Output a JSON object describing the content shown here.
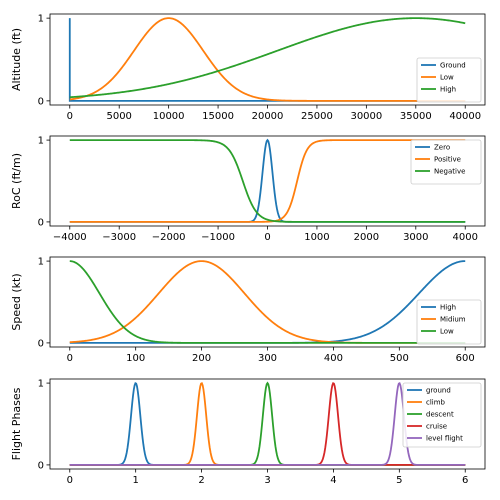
{
  "chart_data": [
    {
      "type": "line",
      "ylabel": "Altitude (ft)",
      "xlim": [
        -2000,
        42000
      ],
      "ylim": [
        -0.05,
        1.05
      ],
      "xticks": [
        0,
        5000,
        10000,
        15000,
        20000,
        25000,
        30000,
        35000,
        40000
      ],
      "yticks": [
        0,
        1
      ],
      "legend": "right",
      "series": [
        {
          "name": "Ground",
          "color": "#1f77b4",
          "kind": "spike",
          "at": 0,
          "x_range": [
            0,
            40000
          ]
        },
        {
          "name": "Low",
          "color": "#ff7f0e",
          "kind": "gauss",
          "mean": 10000,
          "sigma": 3500,
          "x_range": [
            0,
            40000
          ]
        },
        {
          "name": "High",
          "color": "#2ca02c",
          "kind": "gauss",
          "mean": 35000,
          "sigma": 14000,
          "x_range": [
            0,
            40000
          ]
        }
      ]
    },
    {
      "type": "line",
      "ylabel": "RoC (ft/m)",
      "xlim": [
        -4400,
        4400
      ],
      "ylim": [
        -0.05,
        1.05
      ],
      "xticks": [
        -4000,
        -3000,
        -2000,
        -1000,
        0,
        1000,
        2000,
        3000,
        4000
      ],
      "yticks": [
        0,
        1
      ],
      "legend": "top-right",
      "series": [
        {
          "name": "Zero",
          "color": "#1f77b4",
          "kind": "gauss",
          "mean": 0,
          "sigma": 100,
          "x_range": [
            -4000,
            4000
          ]
        },
        {
          "name": "Positive",
          "color": "#ff7f0e",
          "kind": "sigmoid",
          "center": 600,
          "width": 100,
          "x_range": [
            -4000,
            4000
          ]
        },
        {
          "name": "Negative",
          "color": "#2ca02c",
          "kind": "zsig",
          "center": -500,
          "width": 140,
          "x_range": [
            -4000,
            4000
          ]
        }
      ]
    },
    {
      "type": "line",
      "ylabel": "Speed (kt)",
      "xlim": [
        -30,
        630
      ],
      "ylim": [
        -0.05,
        1.05
      ],
      "xticks": [
        0,
        100,
        200,
        300,
        400,
        500,
        600
      ],
      "yticks": [
        0,
        1
      ],
      "legend": "right",
      "series": [
        {
          "name": "High",
          "color": "#1f77b4",
          "kind": "gauss",
          "mean": 600,
          "sigma": 70,
          "x_range": [
            0,
            600
          ]
        },
        {
          "name": "Midium",
          "color": "#ff7f0e",
          "kind": "gauss",
          "mean": 200,
          "sigma": 65,
          "x_range": [
            0,
            600
          ]
        },
        {
          "name": "Low",
          "color": "#2ca02c",
          "kind": "gauss",
          "mean": 0,
          "sigma": 45,
          "x_range": [
            0,
            600
          ]
        }
      ]
    },
    {
      "type": "line",
      "ylabel": "Flight Phases",
      "xlim": [
        -0.3,
        6.3
      ],
      "ylim": [
        -0.05,
        1.05
      ],
      "xticks": [
        0,
        1,
        2,
        3,
        4,
        5,
        6
      ],
      "yticks": [
        0,
        1
      ],
      "legend": "top-right",
      "series": [
        {
          "name": "ground",
          "color": "#1f77b4",
          "kind": "gauss",
          "mean": 1,
          "sigma": 0.07,
          "x_range": [
            0,
            6
          ]
        },
        {
          "name": "climb",
          "color": "#ff7f0e",
          "kind": "gauss",
          "mean": 2,
          "sigma": 0.07,
          "x_range": [
            0,
            6
          ]
        },
        {
          "name": "descent",
          "color": "#2ca02c",
          "kind": "gauss",
          "mean": 3,
          "sigma": 0.07,
          "x_range": [
            0,
            6
          ]
        },
        {
          "name": "cruise",
          "color": "#d62728",
          "kind": "gauss",
          "mean": 4,
          "sigma": 0.07,
          "x_range": [
            0,
            6
          ]
        },
        {
          "name": "level flight",
          "color": "#9467bd",
          "kind": "gauss",
          "mean": 5,
          "sigma": 0.07,
          "x_range": [
            0,
            6
          ]
        }
      ]
    }
  ]
}
